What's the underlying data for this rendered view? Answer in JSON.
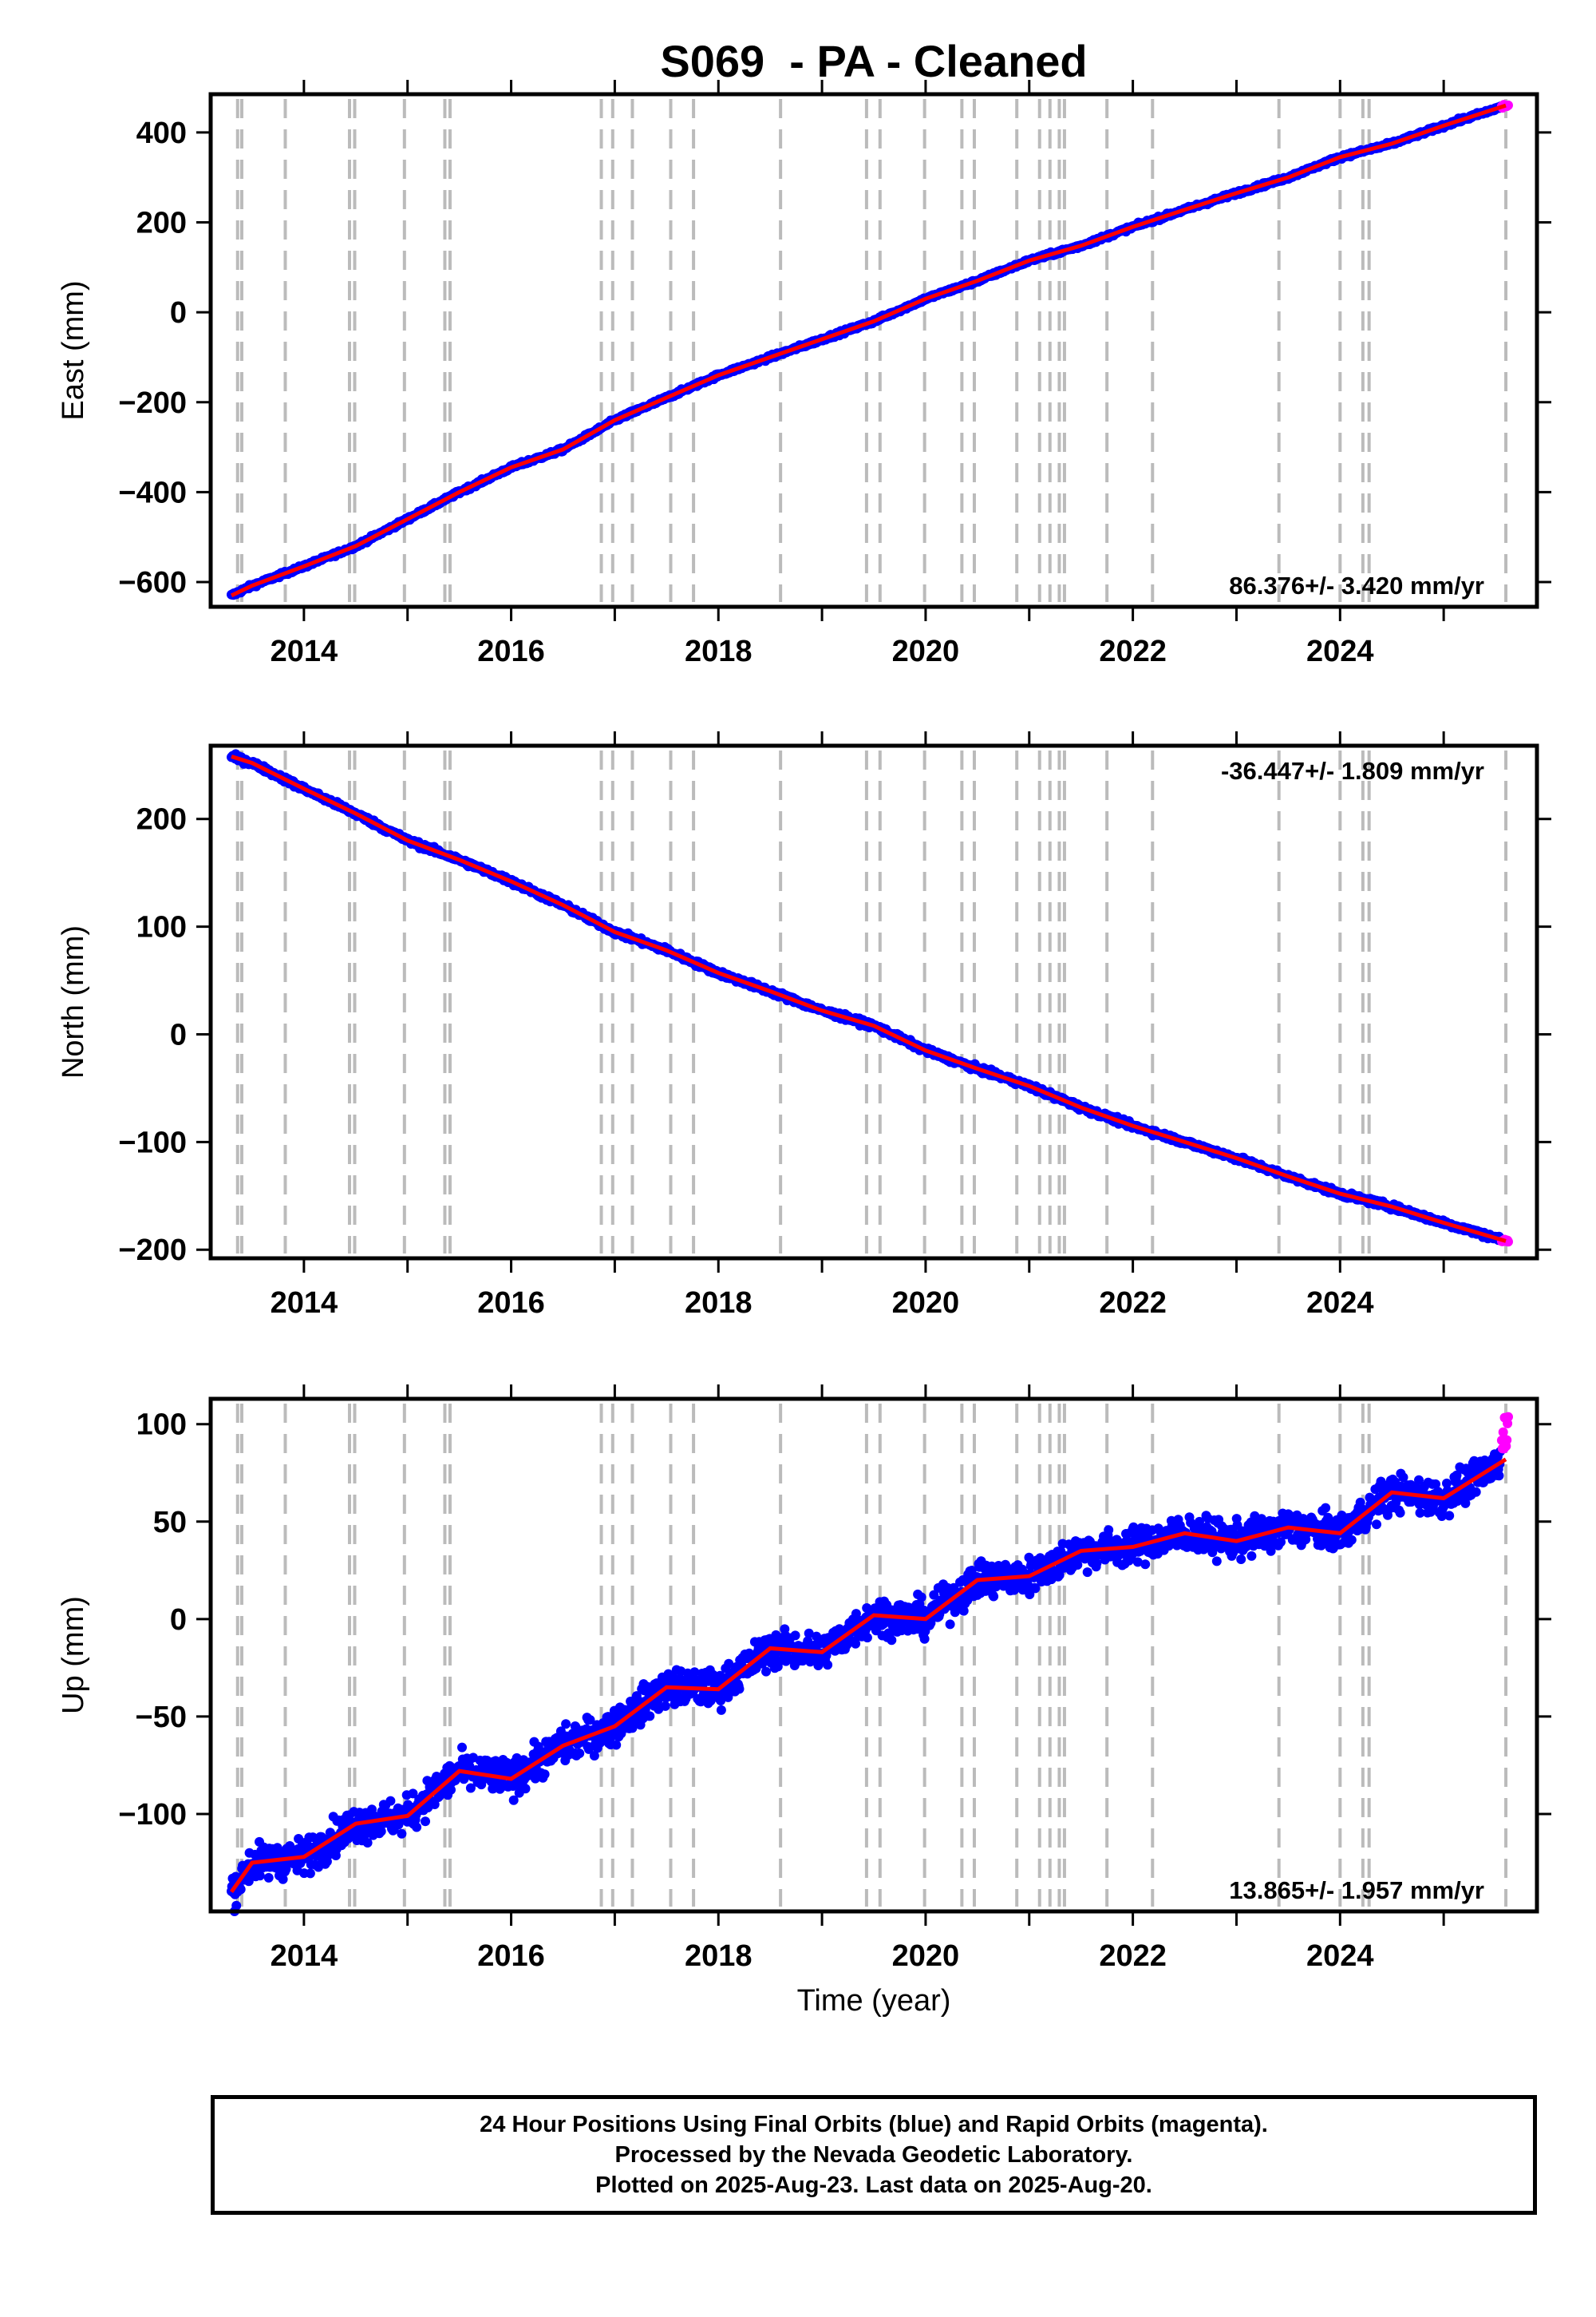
{
  "title": "S069  - PA - Cleaned",
  "xlabel": "Time (year)",
  "x_tick_labels": [
    "2014",
    "2016",
    "2018",
    "2020",
    "2022",
    "2024"
  ],
  "colors": {
    "final_orbits": "#0000ff",
    "rapid_orbits": "#ff00ff",
    "model": "#ff0000",
    "event_lines": "#bbbbbb",
    "frame": "#000000"
  },
  "event_lines": [
    2013.36,
    2013.4,
    2013.82,
    2014.44,
    2014.49,
    2014.97,
    2015.36,
    2015.41,
    2016.87,
    2016.98,
    2017.17,
    2017.54,
    2017.76,
    2018.6,
    2019.43,
    2019.56,
    2019.99,
    2020.35,
    2020.47,
    2020.88,
    2021.1,
    2021.2,
    2021.29,
    2021.34,
    2021.75,
    2022.19,
    2023.41,
    2024.0,
    2024.22,
    2024.28,
    2025.6
  ],
  "chart_data": [
    {
      "type": "scatter",
      "ylabel": "East (mm)",
      "xlim": [
        2013.1,
        2025.9
      ],
      "ylim": [
        -655,
        485
      ],
      "y_ticks": [
        -600,
        -400,
        -200,
        0,
        200,
        400
      ],
      "y_tick_labels": [
        "−600",
        "−400",
        "−200",
        "0",
        "200",
        "400"
      ],
      "rate_label": "86.376+/- 3.420 mm/yr",
      "rate_position": "bottom-right",
      "series": [
        {
          "x": [
            2013.3,
            2013.5,
            2014.0,
            2014.5,
            2015.0,
            2015.5,
            2016.0,
            2016.5,
            2017.0,
            2017.5,
            2018.0,
            2018.5,
            2019.0,
            2019.5,
            2020.0,
            2020.5,
            2021.0,
            2021.5,
            2022.0,
            2022.5,
            2023.0,
            2023.5,
            2024.0,
            2024.5,
            2025.0,
            2025.6
          ],
          "y": [
            -630,
            -608,
            -565,
            -520,
            -460,
            -400,
            -345,
            -305,
            -240,
            -190,
            -140,
            -100,
            -60,
            -20,
            30,
            70,
            115,
            148,
            190,
            228,
            265,
            300,
            345,
            375,
            415,
            460
          ]
        }
      ]
    },
    {
      "type": "scatter",
      "ylabel": "North (mm)",
      "xlim": [
        2013.1,
        2025.9
      ],
      "ylim": [
        -208,
        268
      ],
      "y_ticks": [
        -200,
        -100,
        0,
        100,
        200
      ],
      "y_tick_labels": [
        "−200",
        "−100",
        "0",
        "100",
        "200"
      ],
      "rate_label": "-36.447+/- 1.809 mm/yr",
      "rate_position": "top-right",
      "series": [
        {
          "x": [
            2013.3,
            2013.5,
            2014.0,
            2014.5,
            2015.0,
            2015.5,
            2016.0,
            2016.5,
            2017.0,
            2017.5,
            2018.0,
            2018.5,
            2019.0,
            2019.5,
            2020.0,
            2020.5,
            2021.0,
            2021.5,
            2022.0,
            2022.5,
            2023.0,
            2023.5,
            2024.0,
            2024.5,
            2025.0,
            2025.6
          ],
          "y": [
            258,
            252,
            228,
            205,
            180,
            162,
            142,
            120,
            95,
            78,
            57,
            40,
            22,
            8,
            -15,
            -32,
            -48,
            -68,
            -85,
            -100,
            -115,
            -132,
            -148,
            -160,
            -175,
            -192
          ]
        }
      ]
    },
    {
      "type": "scatter",
      "ylabel": "Up (mm)",
      "xlim": [
        2013.1,
        2025.9
      ],
      "ylim": [
        -150,
        113
      ],
      "y_ticks": [
        -100,
        -50,
        0,
        50,
        100
      ],
      "y_tick_labels": [
        "−100",
        "−50",
        "0",
        "50",
        "100"
      ],
      "rate_label": "13.865+/- 1.957 mm/yr",
      "rate_position": "bottom-right",
      "series": [
        {
          "x": [
            2013.3,
            2013.5,
            2014.0,
            2014.5,
            2015.0,
            2015.5,
            2016.0,
            2016.5,
            2017.0,
            2017.5,
            2018.0,
            2018.5,
            2019.0,
            2019.5,
            2020.0,
            2020.5,
            2021.0,
            2021.5,
            2022.0,
            2022.5,
            2023.0,
            2023.5,
            2024.0,
            2024.5,
            2025.0,
            2025.6
          ],
          "y": [
            -140,
            -125,
            -122,
            -105,
            -101,
            -78,
            -82,
            -65,
            -55,
            -35,
            -36,
            -15,
            -17,
            2,
            0,
            20,
            22,
            35,
            37,
            44,
            40,
            47,
            44,
            65,
            62,
            82
          ]
        }
      ]
    }
  ],
  "footer": {
    "line1": "24 Hour Positions Using Final Orbits (blue) and Rapid Orbits (magenta).",
    "line2": "Processed by the Nevada Geodetic Laboratory.",
    "line3": "Plotted on 2025-Aug-23. Last data on 2025-Aug-20."
  }
}
